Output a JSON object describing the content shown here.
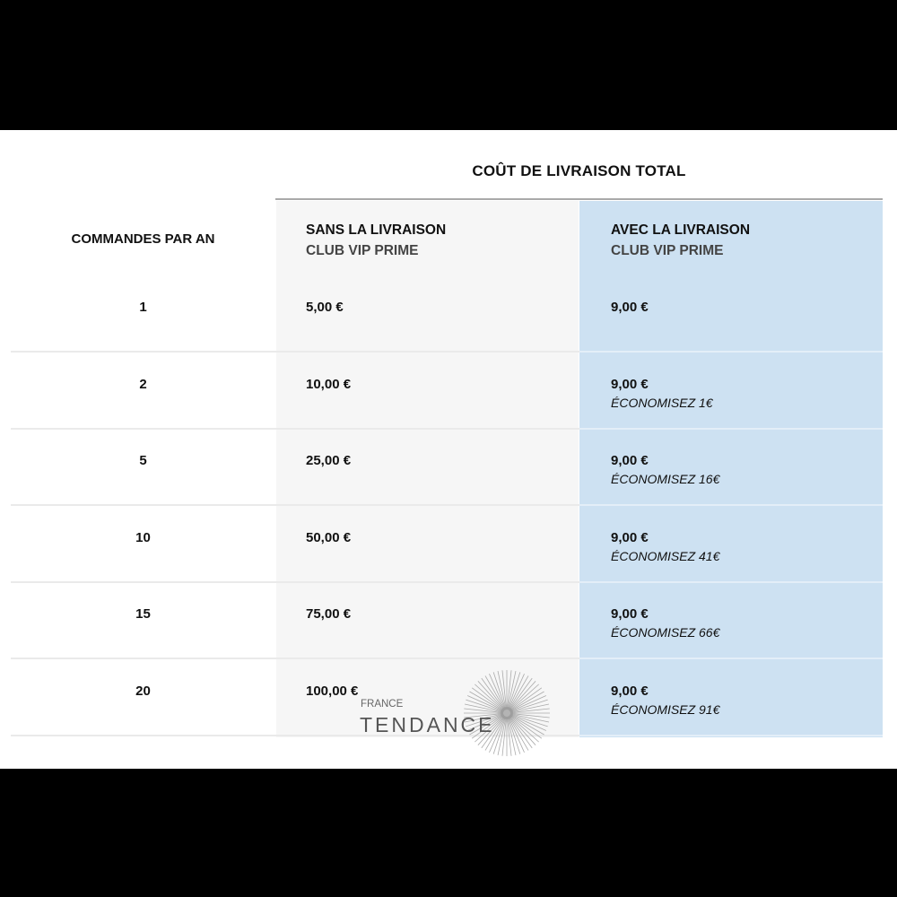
{
  "title": "COÛT DE LIVRAISON TOTAL",
  "headers": {
    "orders": "COMMANDES PAR AN",
    "without": {
      "line1": "SANS LA LIVRAISON",
      "line2": "CLUB VIP PRIME"
    },
    "with": {
      "line1": "AVEC LA LIVRAISON",
      "line2": "CLUB VIP PRIME"
    }
  },
  "rows": [
    {
      "orders": "1",
      "without": "5,00 €",
      "with": "9,00 €",
      "savings": ""
    },
    {
      "orders": "2",
      "without": "10,00 €",
      "with": "9,00 €",
      "savings": "ÉCONOMISEZ 1€"
    },
    {
      "orders": "5",
      "without": "25,00 €",
      "with": "9,00 €",
      "savings": "ÉCONOMISEZ 16€"
    },
    {
      "orders": "10",
      "without": "50,00 €",
      "with": "9,00 €",
      "savings": "ÉCONOMISEZ 41€"
    },
    {
      "orders": "15",
      "without": "75,00 €",
      "with": "9,00 €",
      "savings": "ÉCONOMISEZ 66€"
    },
    {
      "orders": "20",
      "without": "100,00 €",
      "with": "9,00 €",
      "savings": "ÉCONOMISEZ 91€"
    }
  ],
  "watermark": {
    "line1": "FRANCE",
    "line2": "TENDANCE"
  },
  "colors": {
    "highlight_column": "#cde1f2",
    "plain_column": "#f6f6f6"
  }
}
